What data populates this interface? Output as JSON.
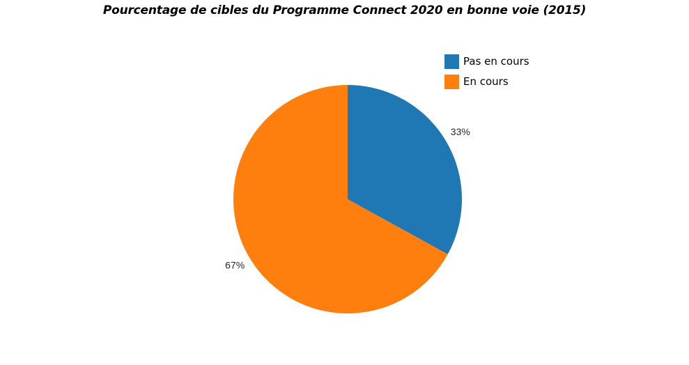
{
  "chart_data": {
    "type": "pie",
    "title": "Pourcentage de cibles du Programme Connect 2020 en bonne voie (2015)",
    "slices": [
      {
        "name": "Pas en cours",
        "value": 33,
        "label": "33%",
        "color": "#1f77b4"
      },
      {
        "name": "En cours",
        "value": 67,
        "label": "67%",
        "color": "#ff7f0e"
      }
    ],
    "start_angle_deg": 90,
    "direction": "clockwise",
    "legend_position": "top-right"
  }
}
